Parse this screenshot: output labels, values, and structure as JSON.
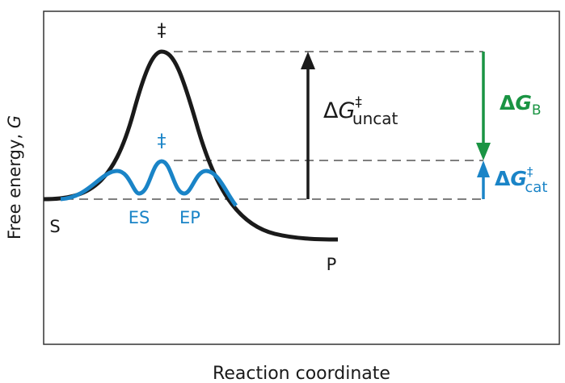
{
  "axes": {
    "ylabel_main": "Free energy, ",
    "ylabel_var": "G",
    "xlabel": "Reaction coordinate"
  },
  "labels": {
    "ts_uncat": "‡",
    "ts_cat": "‡",
    "substrate": "S",
    "product": "P",
    "es": "ES",
    "ep": "EP",
    "dg_uncat": {
      "delta": "Δ",
      "g": "G",
      "sup": "‡",
      "sub": "uncat"
    },
    "dg_b": {
      "delta": "Δ",
      "g": "G",
      "sub": "B"
    },
    "dg_cat": {
      "delta": "Δ",
      "g": "G",
      "sup": "‡",
      "sub": "cat"
    }
  },
  "colors": {
    "uncatalyzed": "#1a1a1a",
    "catalyzed": "#1a84c7",
    "binding": "#1a9443",
    "dashed": "#555555"
  }
}
